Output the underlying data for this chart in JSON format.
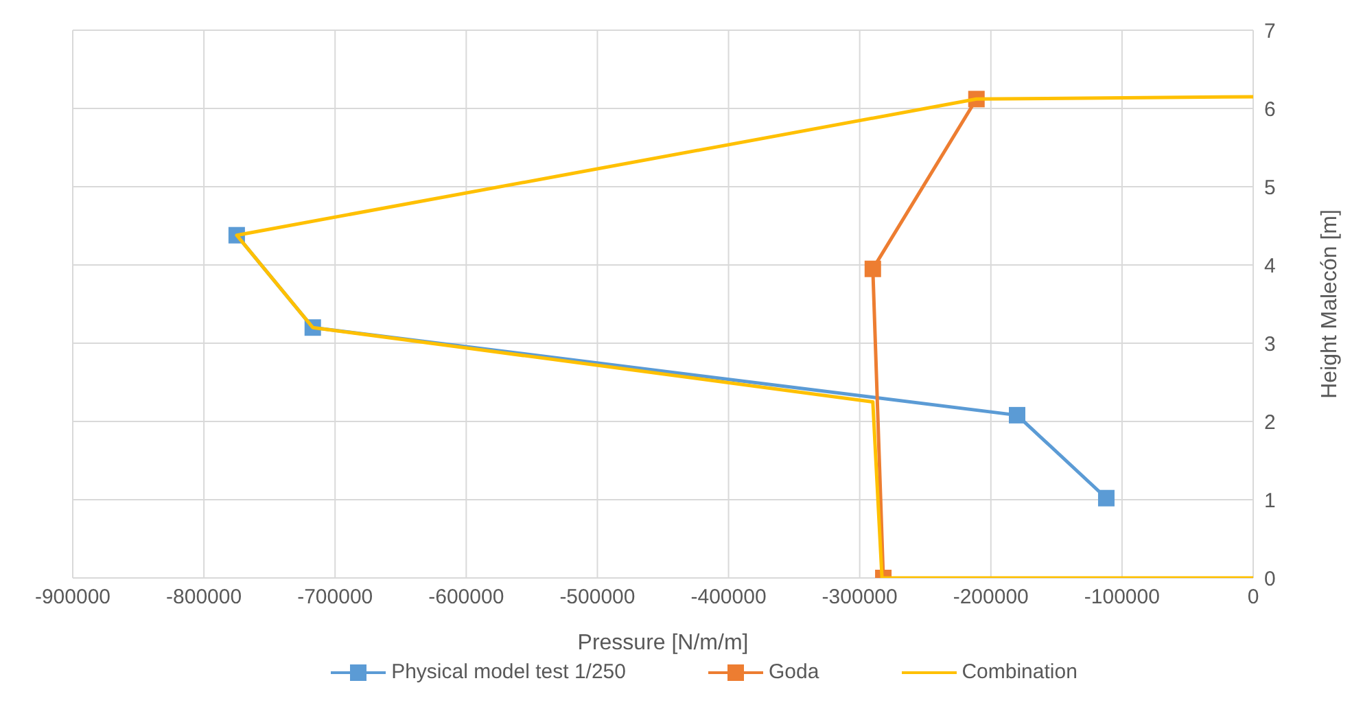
{
  "chart_data": {
    "type": "line",
    "xlabel": "Pressure [N/m/m]",
    "ylabel": "Height Malecón [m]",
    "xlim": [
      -900000,
      0
    ],
    "ylim": [
      0,
      7
    ],
    "xticks": [
      -900000,
      -800000,
      -700000,
      -600000,
      -500000,
      -400000,
      -300000,
      -200000,
      -100000,
      0
    ],
    "yticks": [
      0,
      1,
      2,
      3,
      4,
      5,
      6,
      7
    ],
    "grid": true,
    "legend": "bottom",
    "series": [
      {
        "name": "Physical model test 1/250",
        "color": "#5b9bd5",
        "marker": "square",
        "x": [
          -775000,
          -717000,
          -180000,
          -112000
        ],
        "values": [
          4.38,
          3.2,
          2.08,
          1.02
        ]
      },
      {
        "name": "Goda",
        "color": "#ed7d31",
        "marker": "square",
        "x": [
          -282000,
          -290000,
          -211000
        ],
        "values": [
          0,
          3.95,
          6.12
        ]
      },
      {
        "name": "Combination",
        "color": "#ffc000",
        "marker": "none",
        "x": [
          0,
          -211000,
          -775000,
          -717000,
          -290000,
          -283000,
          0
        ],
        "values": [
          6.15,
          6.12,
          4.38,
          3.2,
          2.25,
          0,
          0
        ]
      }
    ]
  }
}
